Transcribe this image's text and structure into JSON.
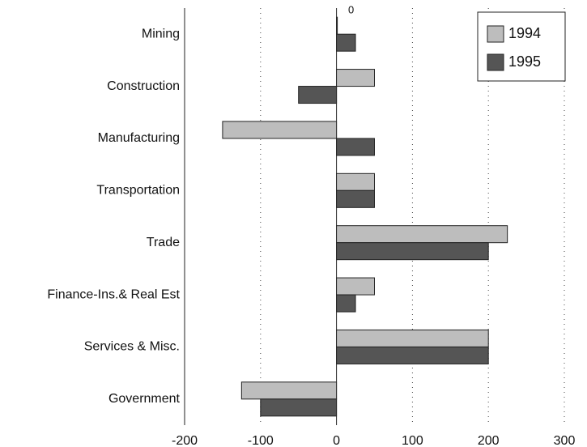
{
  "chart_data": {
    "type": "bar",
    "orientation": "horizontal",
    "categories": [
      "Mining",
      "Construction",
      "Manufacturing",
      "Transportation",
      "Trade",
      "Finance-Ins.& Real Est",
      "Services & Misc.",
      "Government"
    ],
    "series": [
      {
        "name": "1994",
        "color": "#bdbdbd",
        "values": [
          0,
          50,
          -150,
          50,
          225,
          50,
          200,
          -125
        ]
      },
      {
        "name": "1995",
        "color": "#555555",
        "values": [
          25,
          -50,
          50,
          50,
          200,
          25,
          200,
          -100
        ]
      }
    ],
    "xlim": [
      -200,
      300
    ],
    "xticks": [
      -200,
      -100,
      0,
      100,
      200,
      300
    ],
    "grid": true,
    "legend": "top-right"
  }
}
